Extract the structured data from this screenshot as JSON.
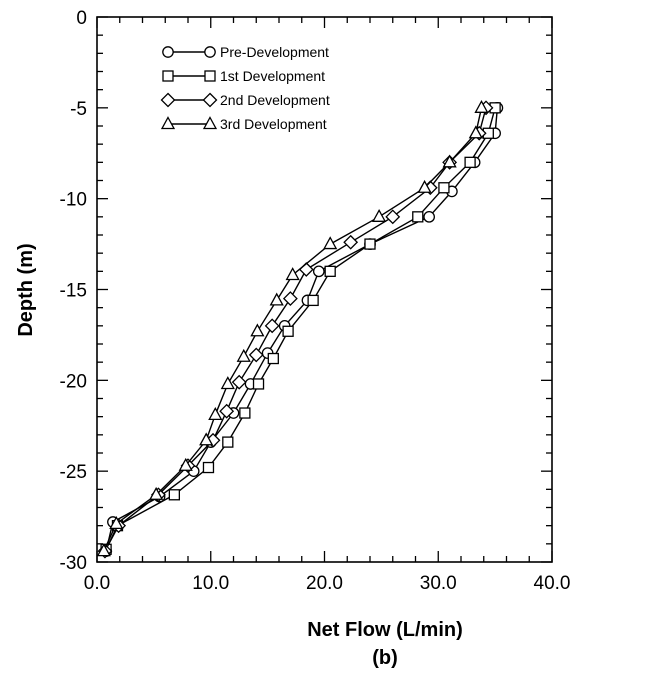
{
  "chart_data": {
    "type": "line",
    "title": "",
    "caption": "(b)",
    "xlabel": "Net Flow (L/min)",
    "ylabel": "Depth (m)",
    "xlim": [
      0,
      40
    ],
    "ylim": [
      -30,
      0
    ],
    "xticks": [
      0,
      10,
      20,
      30,
      40
    ],
    "xtick_labels": [
      "0.0",
      "10.0",
      "20.0",
      "30.0",
      "40.0"
    ],
    "yticks": [
      0,
      -5,
      -10,
      -15,
      -20,
      -25,
      -30
    ],
    "ytick_labels": [
      "0",
      "-5",
      "-10",
      "-15",
      "-20",
      "-25",
      "-30"
    ],
    "grid": false,
    "legend_position": "top-left",
    "series": [
      {
        "name": "Pre-Development",
        "marker": "circle",
        "points": [
          [
            35.2,
            -5.0
          ],
          [
            35.0,
            -6.4
          ],
          [
            33.2,
            -8.0
          ],
          [
            31.2,
            -9.6
          ],
          [
            29.2,
            -11.0
          ],
          [
            24.0,
            -12.5
          ],
          [
            19.5,
            -14.0
          ],
          [
            18.5,
            -15.6
          ],
          [
            16.5,
            -17.0
          ],
          [
            15.0,
            -18.5
          ],
          [
            13.5,
            -20.2
          ],
          [
            12.0,
            -21.8
          ],
          [
            10.0,
            -23.4
          ],
          [
            8.5,
            -25.0
          ],
          [
            5.5,
            -26.4
          ],
          [
            1.4,
            -27.8
          ],
          [
            0.8,
            -29.4
          ]
        ]
      },
      {
        "name": "1st  Development",
        "marker": "square",
        "points": [
          [
            35.0,
            -5.0
          ],
          [
            34.4,
            -6.4
          ],
          [
            32.8,
            -8.0
          ],
          [
            30.5,
            -9.4
          ],
          [
            28.2,
            -11.0
          ],
          [
            24.0,
            -12.5
          ],
          [
            20.5,
            -14.0
          ],
          [
            19.0,
            -15.6
          ],
          [
            16.8,
            -17.3
          ],
          [
            15.5,
            -18.8
          ],
          [
            14.2,
            -20.2
          ],
          [
            13.0,
            -21.8
          ],
          [
            11.5,
            -23.4
          ],
          [
            9.8,
            -24.8
          ],
          [
            6.8,
            -26.3
          ],
          [
            1.8,
            -28.0
          ],
          [
            0.8,
            -29.3
          ]
        ]
      },
      {
        "name": "2nd Development",
        "marker": "diamond",
        "points": [
          [
            34.2,
            -5.0
          ],
          [
            33.6,
            -6.4
          ],
          [
            31.0,
            -8.0
          ],
          [
            29.3,
            -9.4
          ],
          [
            26.0,
            -11.0
          ],
          [
            22.3,
            -12.4
          ],
          [
            18.4,
            -13.9
          ],
          [
            17.0,
            -15.5
          ],
          [
            15.4,
            -17.0
          ],
          [
            14.0,
            -18.6
          ],
          [
            12.5,
            -20.1
          ],
          [
            11.4,
            -21.7
          ],
          [
            10.2,
            -23.3
          ],
          [
            8.0,
            -24.7
          ],
          [
            5.4,
            -26.3
          ],
          [
            1.9,
            -28.0
          ],
          [
            0.7,
            -29.4
          ]
        ]
      },
      {
        "name": "3rd Development",
        "marker": "triangle",
        "points": [
          [
            33.8,
            -5.0
          ],
          [
            33.3,
            -6.4
          ],
          [
            31.0,
            -8.0
          ],
          [
            28.8,
            -9.4
          ],
          [
            24.8,
            -11.0
          ],
          [
            20.5,
            -12.5
          ],
          [
            17.2,
            -14.2
          ],
          [
            15.8,
            -15.6
          ],
          [
            14.1,
            -17.3
          ],
          [
            12.9,
            -18.7
          ],
          [
            11.5,
            -20.2
          ],
          [
            10.4,
            -21.9
          ],
          [
            9.6,
            -23.3
          ],
          [
            7.8,
            -24.7
          ],
          [
            5.2,
            -26.3
          ],
          [
            1.7,
            -27.9
          ],
          [
            0.6,
            -29.4
          ]
        ]
      }
    ]
  }
}
